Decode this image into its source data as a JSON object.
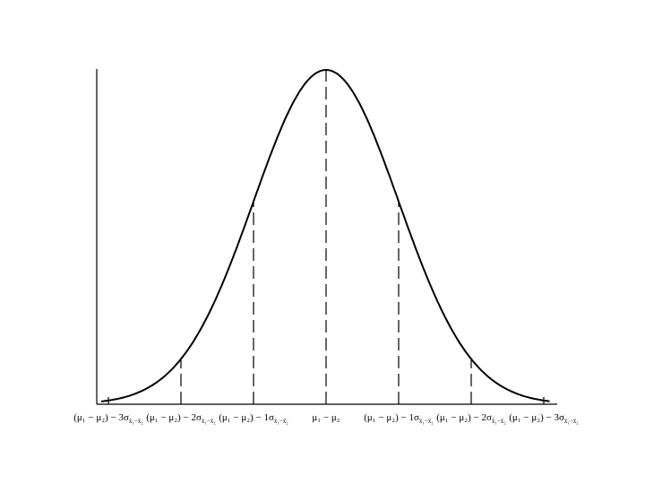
{
  "labels": [
    {
      "main": "(μ₁ − μ₂) − 3σ",
      "sub": "x̄₁−x̄₂"
    },
    {
      "main": "(μ₁ − μ₂) − 2σ",
      "sub": "x̄₁−x̄₂"
    },
    {
      "main": "(μ₁ − μ₂) − 1σ",
      "sub": "x̄₁−x̄₂"
    },
    {
      "main": "μ₁ − μ₂"
    },
    {
      "main": "(μ₁ − μ₂) − 1σ",
      "sub": "x̄₁−x̄₂"
    },
    {
      "main": "(μ₁ − μ₂) − 2σ",
      "sub": "x̄₁−x̄₂"
    },
    {
      "main": "(μ₁ − μ₂) − 3σ",
      "sub": "x̄₁−x̄₂"
    }
  ]
}
